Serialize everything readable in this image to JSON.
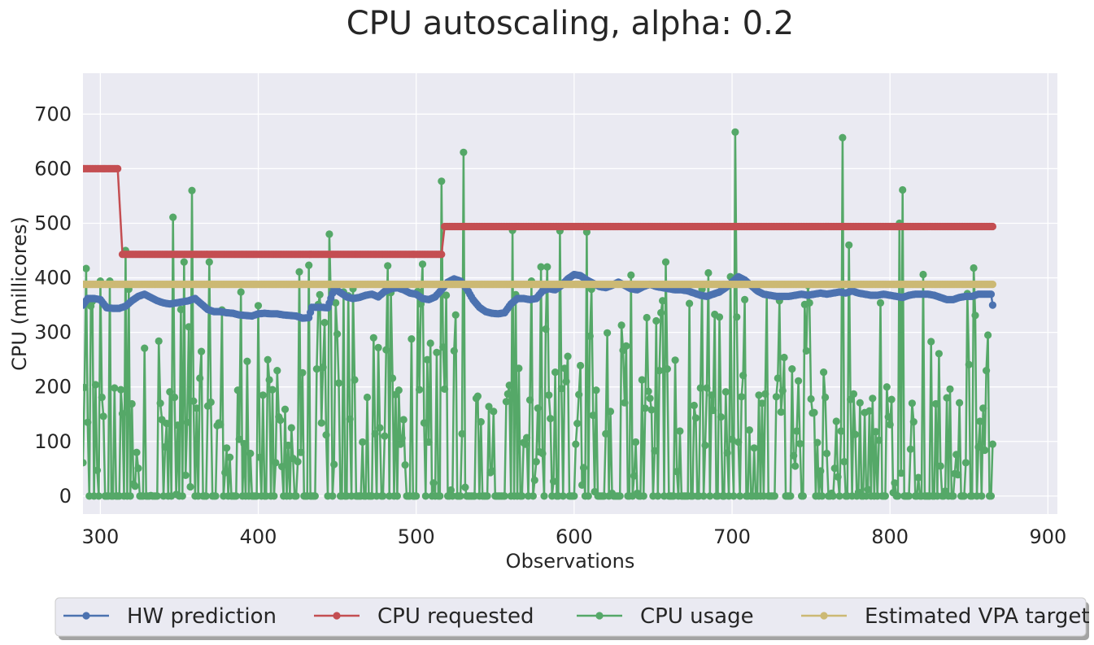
{
  "chart_data": {
    "type": "line",
    "title": "CPU autoscaling, alpha: 0.2",
    "xlabel": "Observations",
    "ylabel": "CPU (millicores)",
    "xlim": [
      289,
      906
    ],
    "ylim": [
      -33,
      775
    ],
    "xticks": [
      300,
      400,
      500,
      600,
      700,
      800,
      900
    ],
    "yticks": [
      0,
      100,
      200,
      300,
      400,
      500,
      600,
      700
    ],
    "grid": true,
    "legend_placement": "bottom-center",
    "x_start": 289,
    "x_end": 865,
    "series": [
      {
        "name": "HW prediction",
        "color": "#4c72b0",
        "points": [
          [
            289,
            350
          ],
          [
            292,
            362
          ],
          [
            296,
            362
          ],
          [
            300,
            360
          ],
          [
            304,
            345
          ],
          [
            308,
            344
          ],
          [
            312,
            344
          ],
          [
            316,
            348
          ],
          [
            320,
            358
          ],
          [
            324,
            366
          ],
          [
            328,
            370
          ],
          [
            332,
            364
          ],
          [
            336,
            358
          ],
          [
            340,
            354
          ],
          [
            344,
            352
          ],
          [
            348,
            354
          ],
          [
            352,
            356
          ],
          [
            356,
            358
          ],
          [
            360,
            362
          ],
          [
            364,
            352
          ],
          [
            368,
            342
          ],
          [
            372,
            338
          ],
          [
            376,
            338
          ],
          [
            380,
            336
          ],
          [
            384,
            335
          ],
          [
            388,
            332
          ],
          [
            392,
            331
          ],
          [
            396,
            330
          ],
          [
            400,
            334
          ],
          [
            404,
            335
          ],
          [
            408,
            334
          ],
          [
            412,
            334
          ],
          [
            416,
            332
          ],
          [
            420,
            331
          ],
          [
            424,
            330
          ],
          [
            428,
            326
          ],
          [
            432,
            327
          ],
          [
            434,
            346
          ],
          [
            440,
            346
          ],
          [
            444,
            345
          ],
          [
            448,
            380
          ],
          [
            452,
            373
          ],
          [
            456,
            365
          ],
          [
            460,
            362
          ],
          [
            464,
            364
          ],
          [
            468,
            368
          ],
          [
            472,
            370
          ],
          [
            476,
            365
          ],
          [
            480,
            375
          ],
          [
            484,
            380
          ],
          [
            488,
            382
          ],
          [
            492,
            378
          ],
          [
            496,
            372
          ],
          [
            500,
            370
          ],
          [
            504,
            362
          ],
          [
            508,
            360
          ],
          [
            512,
            365
          ],
          [
            516,
            378
          ],
          [
            520,
            392
          ],
          [
            524,
            398
          ],
          [
            528,
            394
          ],
          [
            532,
            380
          ],
          [
            536,
            360
          ],
          [
            540,
            346
          ],
          [
            544,
            338
          ],
          [
            548,
            335
          ],
          [
            552,
            334
          ],
          [
            556,
            336
          ],
          [
            560,
            352
          ],
          [
            564,
            362
          ],
          [
            568,
            362
          ],
          [
            572,
            360
          ],
          [
            576,
            362
          ],
          [
            580,
            376
          ],
          [
            584,
            380
          ],
          [
            588,
            378
          ],
          [
            592,
            386
          ],
          [
            596,
            398
          ],
          [
            600,
            406
          ],
          [
            604,
            404
          ],
          [
            608,
            396
          ],
          [
            612,
            390
          ],
          [
            616,
            384
          ],
          [
            620,
            382
          ],
          [
            624,
            386
          ],
          [
            628,
            392
          ],
          [
            632,
            386
          ],
          [
            636,
            380
          ],
          [
            640,
            378
          ],
          [
            644,
            384
          ],
          [
            648,
            388
          ],
          [
            652,
            384
          ],
          [
            656,
            382
          ],
          [
            660,
            380
          ],
          [
            664,
            378
          ],
          [
            668,
            378
          ],
          [
            672,
            376
          ],
          [
            676,
            372
          ],
          [
            680,
            368
          ],
          [
            684,
            366
          ],
          [
            688,
            370
          ],
          [
            692,
            374
          ],
          [
            696,
            382
          ],
          [
            700,
            392
          ],
          [
            704,
            402
          ],
          [
            708,
            396
          ],
          [
            712,
            386
          ],
          [
            716,
            376
          ],
          [
            720,
            370
          ],
          [
            724,
            368
          ],
          [
            728,
            366
          ],
          [
            732,
            366
          ],
          [
            736,
            366
          ],
          [
            740,
            368
          ],
          [
            744,
            370
          ],
          [
            748,
            368
          ],
          [
            752,
            370
          ],
          [
            756,
            372
          ],
          [
            760,
            370
          ],
          [
            764,
            372
          ],
          [
            768,
            374
          ],
          [
            772,
            372
          ],
          [
            776,
            376
          ],
          [
            780,
            372
          ],
          [
            784,
            370
          ],
          [
            788,
            368
          ],
          [
            792,
            368
          ],
          [
            796,
            370
          ],
          [
            800,
            368
          ],
          [
            804,
            366
          ],
          [
            808,
            364
          ],
          [
            812,
            368
          ],
          [
            816,
            370
          ],
          [
            820,
            370
          ],
          [
            824,
            370
          ],
          [
            828,
            368
          ],
          [
            832,
            364
          ],
          [
            836,
            360
          ],
          [
            840,
            360
          ],
          [
            844,
            364
          ],
          [
            848,
            366
          ],
          [
            852,
            366
          ],
          [
            856,
            370
          ],
          [
            860,
            370
          ],
          [
            864,
            370
          ],
          [
            865,
            350
          ]
        ]
      },
      {
        "name": "CPU requested",
        "color": "#c44e52",
        "segments": [
          {
            "x0": 289,
            "x1": 311,
            "y": 600
          },
          {
            "x0": 314,
            "x1": 516,
            "y": 443
          },
          {
            "x0": 518,
            "x1": 865,
            "y": 494
          }
        ],
        "transitions": [
          [
            311,
            600,
            314,
            443
          ],
          [
            516,
            443,
            518,
            494
          ]
        ]
      },
      {
        "name": "CPU usage",
        "color": "#55a868",
        "n_points": 577,
        "peaks": [
          [
            291,
            417
          ],
          [
            316,
            450
          ],
          [
            346,
            511
          ],
          [
            358,
            560
          ],
          [
            445,
            480
          ],
          [
            482,
            422
          ],
          [
            516,
            577
          ],
          [
            530,
            630
          ],
          [
            561,
            487
          ],
          [
            591,
            486
          ],
          [
            608,
            484
          ],
          [
            702,
            667
          ],
          [
            770,
            657
          ],
          [
            774,
            460
          ],
          [
            806,
            500
          ],
          [
            808,
            561
          ],
          [
            862,
            295
          ],
          [
            865,
            95
          ]
        ]
      },
      {
        "name": "Estimated VPA target",
        "color": "#ccb974",
        "segments": [
          {
            "x0": 289,
            "x1": 865,
            "y": 388
          }
        ]
      }
    ]
  }
}
